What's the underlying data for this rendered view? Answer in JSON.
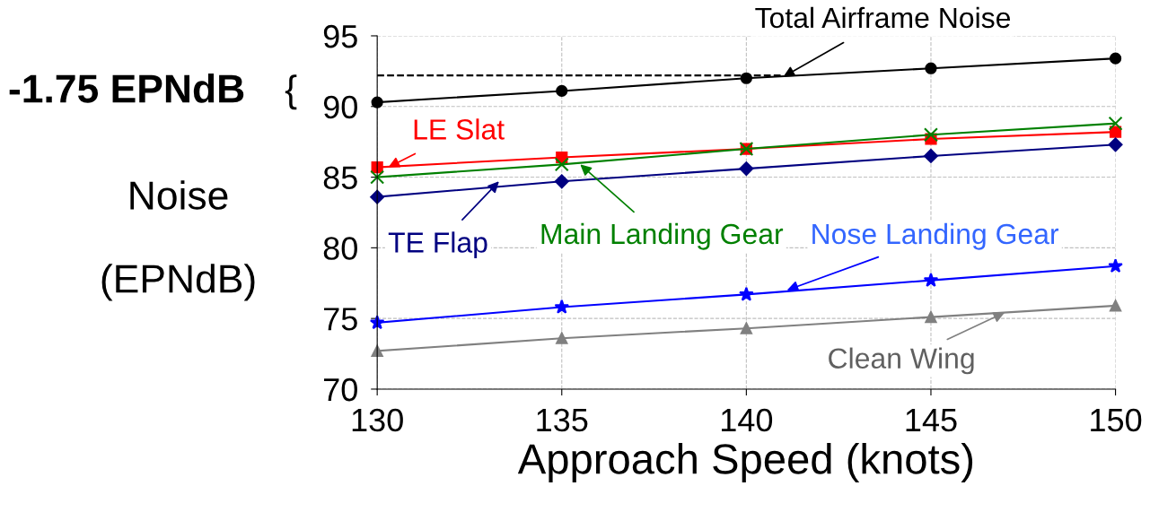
{
  "chart_data": {
    "type": "line",
    "xlabel": "Approach Speed (knots)",
    "ylabel": "Noise\n(EPNdB)",
    "x": [
      130,
      135,
      140,
      145,
      150
    ],
    "series": [
      {
        "color": "#000000",
        "marker": "circle",
        "values": [
          90.3,
          91.1,
          92.0,
          92.7,
          93.4
        ]
      },
      {
        "color": "#ff0000",
        "marker": "square",
        "values": [
          85.7,
          86.4,
          87.0,
          87.7,
          88.2
        ]
      },
      {
        "color": "#008000",
        "marker": "cross",
        "values": [
          85.0,
          85.9,
          87.0,
          88.0,
          88.8
        ]
      },
      {
        "color": "#000080",
        "marker": "diamond",
        "values": [
          83.6,
          84.7,
          85.6,
          86.5,
          87.3
        ]
      },
      {
        "color": "#0000ff",
        "marker": "star",
        "values": [
          74.7,
          75.8,
          76.7,
          77.7,
          78.7
        ]
      },
      {
        "color": "#808080",
        "marker": "triangle",
        "values": [
          72.7,
          73.6,
          74.3,
          75.1,
          75.9
        ]
      },
      {
        "color": "#000000",
        "marker": "none",
        "line_style": "dashed",
        "x": [
          130,
          141
        ],
        "values": [
          92.2,
          92.2
        ]
      }
    ],
    "annotations": [
      {
        "text": "Total Airframe Noise",
        "x": 141,
        "y": 92.1
      },
      {
        "text": "LE Slat",
        "x": 130.3,
        "y": 85.7
      },
      {
        "text": "TE Flap",
        "x": 133.3,
        "y": 84.7
      },
      {
        "text": "Main Landing Gear",
        "x": 135.5,
        "y": 85.9
      },
      {
        "text": "Nose Landing Gear",
        "x": 141.1,
        "y": 77.0
      },
      {
        "text": "Clean Wing",
        "x": 147,
        "y": 75.42
      },
      "-1.75 EPNdB",
      "{"
    ],
    "xlim": [
      130,
      150
    ],
    "xticks": [
      130,
      135,
      140,
      145,
      150
    ],
    "ylim": [
      70,
      95
    ],
    "yticks": [
      70,
      75,
      80,
      85,
      90,
      95
    ],
    "grid": true,
    "legend": false
  }
}
